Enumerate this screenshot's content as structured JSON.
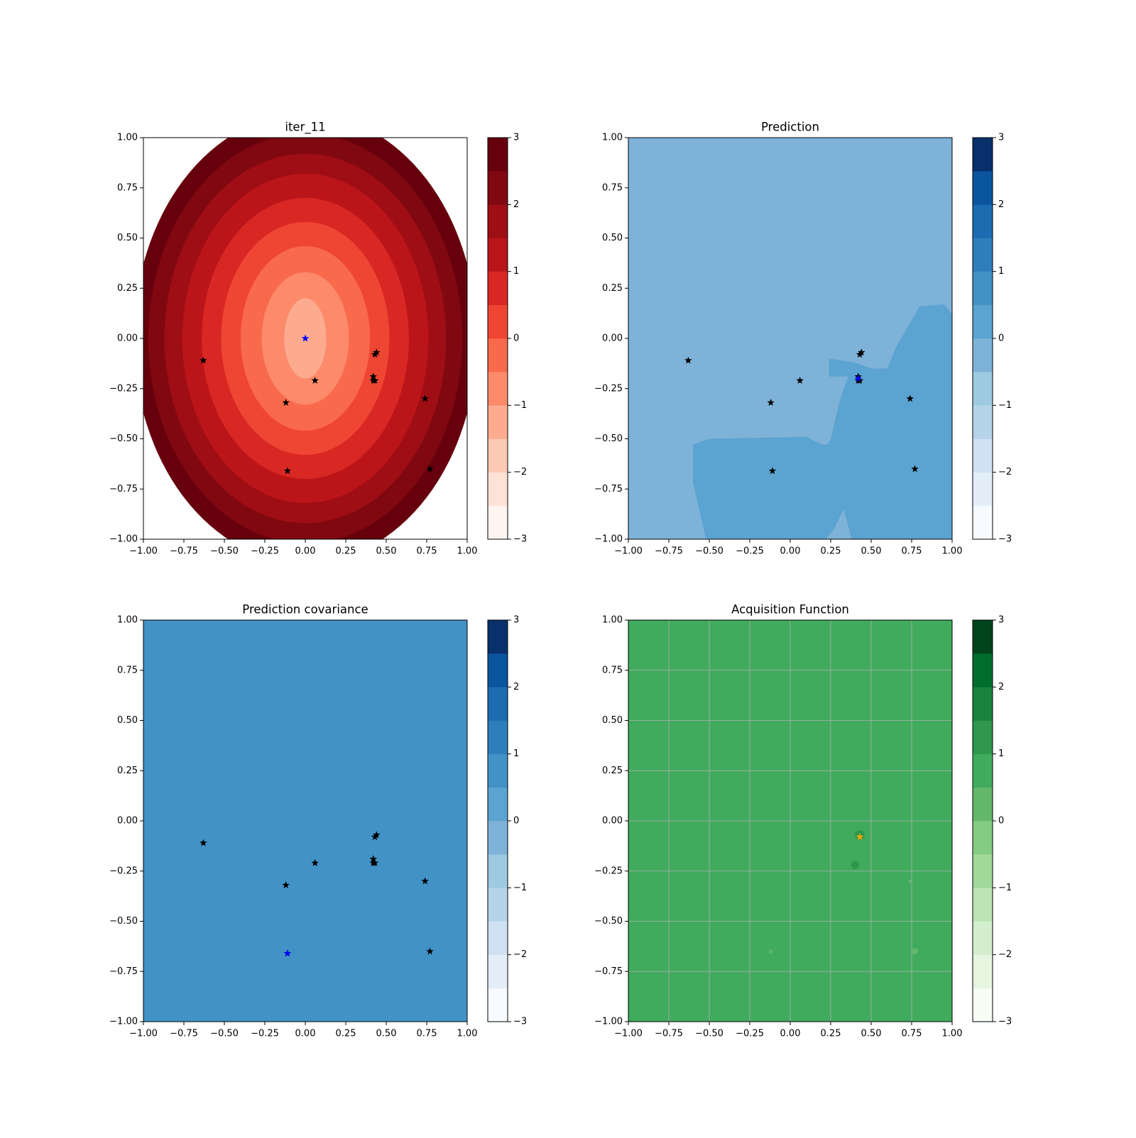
{
  "chart_data": [
    {
      "type": "contourf",
      "title": "iter_11",
      "xlim": [
        -1,
        1
      ],
      "ylim": [
        -1,
        1
      ],
      "xticks": [
        {
          "value": -1,
          "label": "−1.00"
        },
        {
          "value": -0.75,
          "label": "−0.75"
        },
        {
          "value": -0.5,
          "label": "−0.50"
        },
        {
          "value": -0.25,
          "label": "−0.25"
        },
        {
          "value": 0,
          "label": "0.00"
        },
        {
          "value": 0.25,
          "label": "0.25"
        },
        {
          "value": 0.5,
          "label": "0.50"
        },
        {
          "value": 0.75,
          "label": "0.75"
        },
        {
          "value": 1,
          "label": "1.00"
        }
      ],
      "yticks": [
        {
          "value": -1,
          "label": "−1.00"
        },
        {
          "value": -0.75,
          "label": "−0.75"
        },
        {
          "value": -0.5,
          "label": "−0.50"
        },
        {
          "value": -0.25,
          "label": "−0.25"
        },
        {
          "value": 0,
          "label": "0.00"
        },
        {
          "value": 0.25,
          "label": "0.25"
        },
        {
          "value": 0.5,
          "label": "0.50"
        },
        {
          "value": 0.75,
          "label": "0.75"
        },
        {
          "value": 1,
          "label": "1.00"
        }
      ],
      "grid": false,
      "colorbar": {
        "levels": [
          -3,
          -2.5,
          -2,
          -1.5,
          -1,
          -0.5,
          0,
          0.5,
          1,
          1.5,
          2,
          2.5,
          3
        ],
        "colors": [
          "#fff5f0",
          "#fee2d5",
          "#fcc9b4",
          "#fcab8f",
          "#fc8a6b",
          "#f9694c",
          "#ef4533",
          "#d92723",
          "#bb151a",
          "#9f0e14",
          "#800811",
          "#67000d"
        ],
        "ticks": [
          {
            "value": -3,
            "label": "−3"
          },
          {
            "value": -2,
            "label": "−2"
          },
          {
            "value": -1,
            "label": "−1"
          },
          0,
          1,
          2,
          3
        ]
      },
      "regions": [
        {
          "level": 2.5,
          "ellipse": [
            0,
            0,
            1.06,
            1.12
          ]
        },
        {
          "level": 2,
          "ellipse": [
            0,
            0,
            0.97,
            1.02
          ]
        },
        {
          "level": 1.5,
          "ellipse": [
            0,
            0,
            0.87,
            0.92
          ]
        },
        {
          "level": 1,
          "ellipse": [
            0,
            0,
            0.76,
            0.82
          ]
        },
        {
          "level": 0.5,
          "ellipse": [
            0,
            0,
            0.64,
            0.7
          ]
        },
        {
          "level": 0,
          "ellipse": [
            0,
            0,
            0.52,
            0.58
          ]
        },
        {
          "level": -0.5,
          "ellipse": [
            0,
            0,
            0.4,
            0.46
          ]
        },
        {
          "level": -1,
          "ellipse": [
            0,
            0,
            0.27,
            0.33
          ]
        },
        {
          "level": -1.5,
          "ellipse": [
            0,
            0,
            0.13,
            0.2
          ]
        }
      ],
      "points": [
        {
          "color": "black",
          "x": [
            -0.63,
            0.44,
            0.43,
            0.42,
            0.42,
            0.43,
            0.06,
            -0.12,
            0.74,
            -0.11,
            0.77
          ],
          "y": [
            -0.11,
            -0.07,
            -0.08,
            -0.19,
            -0.21,
            -0.21,
            -0.21,
            -0.32,
            -0.3,
            -0.66,
            -0.65
          ]
        },
        {
          "color": "blue",
          "x": [
            0
          ],
          "y": [
            0
          ]
        }
      ]
    },
    {
      "type": "contourf",
      "title": "Prediction",
      "xlim": [
        -1,
        1
      ],
      "ylim": [
        -1,
        1
      ],
      "xticks": [
        {
          "value": -1,
          "label": "−1.00"
        },
        {
          "value": -0.75,
          "label": "−0.75"
        },
        {
          "value": -0.5,
          "label": "−0.50"
        },
        {
          "value": -0.25,
          "label": "−0.25"
        },
        {
          "value": 0,
          "label": "0.00"
        },
        {
          "value": 0.25,
          "label": "0.25"
        },
        {
          "value": 0.5,
          "label": "0.50"
        },
        {
          "value": 0.75,
          "label": "0.75"
        },
        {
          "value": 1,
          "label": "1.00"
        }
      ],
      "yticks": [
        {
          "value": -1,
          "label": "−1.00"
        },
        {
          "value": -0.75,
          "label": "−0.75"
        },
        {
          "value": -0.5,
          "label": "−0.50"
        },
        {
          "value": -0.25,
          "label": "−0.25"
        },
        {
          "value": 0,
          "label": "0.00"
        },
        {
          "value": 0.25,
          "label": "0.25"
        },
        {
          "value": 0.5,
          "label": "0.50"
        },
        {
          "value": 0.75,
          "label": "0.75"
        },
        {
          "value": 1,
          "label": "1.00"
        }
      ],
      "grid": false,
      "colorbar": {
        "levels": [
          -3,
          -2.5,
          -2,
          -1.5,
          -1,
          -0.5,
          0,
          0.5,
          1,
          1.5,
          2,
          2.5,
          3
        ],
        "colors": [
          "#f7fbff",
          "#e3eef9",
          "#cfe1f2",
          "#b5d4e9",
          "#9ecae1",
          "#7fb2d8",
          "#5ba3d0",
          "#4292c6",
          "#2f7ebc",
          "#1d6cb1",
          "#0b559f",
          "#08306b"
        ],
        "ticks": [
          {
            "value": -3,
            "label": "−3"
          },
          {
            "value": -2,
            "label": "−2"
          },
          {
            "value": -1,
            "label": "−1"
          },
          0,
          1,
          2,
          3
        ]
      },
      "background_level": -0.5,
      "regions": [
        {
          "level": 0,
          "polygon": [
            [
              -0.52,
              -1
            ],
            [
              -0.6,
              -0.72
            ],
            [
              -0.6,
              -0.53
            ],
            [
              -0.5,
              -0.5
            ],
            [
              0.1,
              -0.49
            ],
            [
              0.2,
              -0.53
            ],
            [
              0.23,
              -0.53
            ],
            [
              0.25,
              -0.5
            ],
            [
              0.3,
              -0.33
            ],
            [
              0.33,
              -0.25
            ],
            [
              0.36,
              -0.19
            ],
            [
              0.24,
              -0.19
            ],
            [
              0.24,
              -0.1
            ],
            [
              0.4,
              -0.12
            ],
            [
              0.5,
              -0.15
            ],
            [
              0.6,
              -0.15
            ],
            [
              0.65,
              -0.05
            ],
            [
              0.72,
              0.05
            ],
            [
              0.8,
              0.16
            ],
            [
              0.95,
              0.17
            ],
            [
              1,
              0.12
            ],
            [
              1,
              -1
            ],
            [
              0.38,
              -1
            ],
            [
              0.33,
              -0.85
            ],
            [
              0.27,
              -0.95
            ],
            [
              0.22,
              -1
            ]
          ]
        }
      ],
      "points": [
        {
          "color": "black",
          "x": [
            -0.63,
            0.44,
            0.43,
            0.42,
            0.42,
            0.43,
            0.06,
            -0.12,
            0.74,
            -0.11,
            0.77
          ],
          "y": [
            -0.11,
            -0.07,
            -0.08,
            -0.19,
            -0.21,
            -0.21,
            -0.21,
            -0.32,
            -0.3,
            -0.66,
            -0.65
          ]
        },
        {
          "color": "blue",
          "x": [
            0.42
          ],
          "y": [
            -0.2
          ]
        }
      ]
    },
    {
      "type": "contourf",
      "title": "Prediction covariance",
      "xlim": [
        -1,
        1
      ],
      "ylim": [
        -1,
        1
      ],
      "xticks": [
        {
          "value": -1,
          "label": "−1.00"
        },
        {
          "value": -0.75,
          "label": "−0.75"
        },
        {
          "value": -0.5,
          "label": "−0.50"
        },
        {
          "value": -0.25,
          "label": "−0.25"
        },
        {
          "value": 0,
          "label": "0.00"
        },
        {
          "value": 0.25,
          "label": "0.25"
        },
        {
          "value": 0.5,
          "label": "0.50"
        },
        {
          "value": 0.75,
          "label": "0.75"
        },
        {
          "value": 1,
          "label": "1.00"
        }
      ],
      "yticks": [
        {
          "value": -1,
          "label": "−1.00"
        },
        {
          "value": -0.75,
          "label": "−0.75"
        },
        {
          "value": -0.5,
          "label": "−0.50"
        },
        {
          "value": -0.25,
          "label": "−0.25"
        },
        {
          "value": 0,
          "label": "0.00"
        },
        {
          "value": 0.25,
          "label": "0.25"
        },
        {
          "value": 0.5,
          "label": "0.50"
        },
        {
          "value": 0.75,
          "label": "0.75"
        },
        {
          "value": 1,
          "label": "1.00"
        }
      ],
      "grid": false,
      "colorbar": {
        "levels": [
          -3,
          -2.5,
          -2,
          -1.5,
          -1,
          -0.5,
          0,
          0.5,
          1,
          1.5,
          2,
          2.5,
          3
        ],
        "colors": [
          "#f7fbff",
          "#e3eef9",
          "#cfe1f2",
          "#b5d4e9",
          "#9ecae1",
          "#7fb2d8",
          "#5ba3d0",
          "#4292c6",
          "#2f7ebc",
          "#1d6cb1",
          "#0b559f",
          "#08306b"
        ],
        "ticks": [
          {
            "value": -3,
            "label": "−3"
          },
          {
            "value": -2,
            "label": "−2"
          },
          {
            "value": -1,
            "label": "−1"
          },
          0,
          1,
          2,
          3
        ]
      },
      "background_level": 0.5,
      "regions": [],
      "points": [
        {
          "color": "black",
          "x": [
            -0.63,
            0.44,
            0.43,
            0.42,
            0.42,
            0.43,
            0.06,
            -0.12,
            0.74,
            -0.11,
            0.77
          ],
          "y": [
            -0.11,
            -0.07,
            -0.08,
            -0.19,
            -0.21,
            -0.21,
            -0.21,
            -0.32,
            -0.3,
            -0.66,
            -0.65
          ]
        },
        {
          "color": "blue",
          "x": [
            -0.11
          ],
          "y": [
            -0.66
          ]
        }
      ]
    },
    {
      "type": "contourf",
      "title": "Acquisition Function",
      "xlim": [
        -1,
        1
      ],
      "ylim": [
        -1,
        1
      ],
      "xticks": [
        {
          "value": -1,
          "label": "−1.00"
        },
        {
          "value": -0.75,
          "label": "−0.75"
        },
        {
          "value": -0.5,
          "label": "−0.50"
        },
        {
          "value": -0.25,
          "label": "−0.25"
        },
        {
          "value": 0,
          "label": "0.00"
        },
        {
          "value": 0.25,
          "label": "0.25"
        },
        {
          "value": 0.5,
          "label": "0.50"
        },
        {
          "value": 0.75,
          "label": "0.75"
        },
        {
          "value": 1,
          "label": "1.00"
        }
      ],
      "yticks": [
        {
          "value": -1,
          "label": "−1.00"
        },
        {
          "value": -0.75,
          "label": "−0.75"
        },
        {
          "value": -0.5,
          "label": "−0.50"
        },
        {
          "value": -0.25,
          "label": "−0.25"
        },
        {
          "value": 0,
          "label": "0.00"
        },
        {
          "value": 0.25,
          "label": "0.25"
        },
        {
          "value": 0.5,
          "label": "0.50"
        },
        {
          "value": 0.75,
          "label": "0.75"
        },
        {
          "value": 1,
          "label": "1.00"
        }
      ],
      "grid": true,
      "colorbar": {
        "levels": [
          -3,
          -2.5,
          -2,
          -1.5,
          -1,
          -0.5,
          0,
          0.5,
          1,
          1.5,
          2,
          2.5,
          3
        ],
        "colors": [
          "#f7fcf5",
          "#e5f5e0",
          "#d3eecd",
          "#bce4b5",
          "#a1d99b",
          "#84cc83",
          "#63b76b",
          "#41ab5d",
          "#2e964d",
          "#1a843f",
          "#006d2c",
          "#00441b"
        ],
        "ticks": [
          {
            "value": -3,
            "label": "−3"
          },
          {
            "value": -2,
            "label": "−2"
          },
          {
            "value": -1,
            "label": "−1"
          },
          0,
          1,
          2,
          3
        ]
      },
      "background_level": 0.5,
      "regions": [
        {
          "level": 1,
          "circle": [
            0.43,
            -0.07,
            0.03
          ]
        },
        {
          "level": 1,
          "circle": [
            0.4,
            -0.22,
            0.025
          ]
        },
        {
          "level": 0,
          "circle": [
            -0.12,
            -0.65,
            0.012
          ]
        },
        {
          "level": 0,
          "circle": [
            0.77,
            -0.65,
            0.02
          ]
        },
        {
          "level": 0,
          "circle": [
            0.74,
            -0.3,
            0.01
          ]
        }
      ],
      "points": [
        {
          "color": "orange",
          "x": [
            0.43
          ],
          "y": [
            -0.08
          ]
        }
      ]
    }
  ]
}
